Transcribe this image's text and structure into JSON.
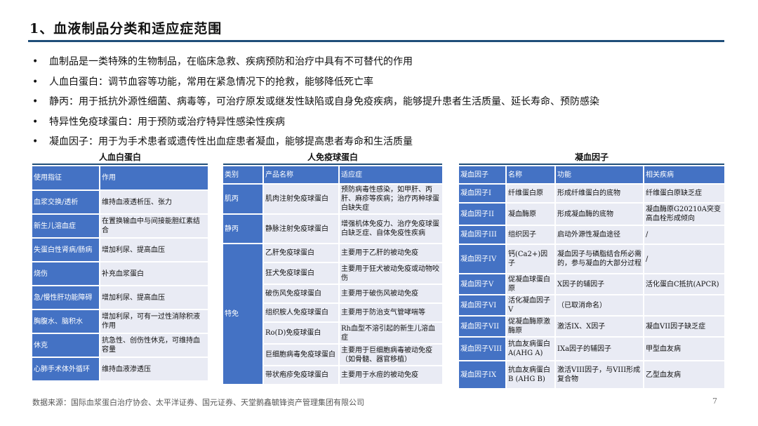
{
  "title": "1、血液制品分类和适应症范围",
  "bullets": [
    "血制品是一类特殊的生物制品，在临床急救、疾病预防和治疗中具有不可替代的作用",
    "人血白蛋白：调节血容等功能，常用在紧急情况下的抢救，能够降低死亡率",
    "静丙：用于抵抗外源性细菌、病毒等，可治疗原发或继发性缺陷或自身免疫疾病，能够提升患者生活质量、延长寿命、预防感染",
    "特异性免疫球蛋白：用于预防或治疗特异性感染性疾病",
    "凝血因子：用于为手术患者或遗传性出血症患者凝血，能够提高患者寿命和生活质量"
  ],
  "albumin": {
    "title": "人血白蛋白",
    "headers": [
      "使用指征",
      "作用"
    ],
    "rows": [
      [
        "血浆交换/透析",
        "维持血液透析压、张力"
      ],
      [
        "新生儿溶血症",
        "在置换输血中与间接能胆红素结合"
      ],
      [
        "失蛋白性肾病/肠病",
        "增加利尿、提高血压"
      ],
      [
        "烧伤",
        "补充血浆蛋白"
      ],
      [
        "急/慢性肝功能障碍",
        "增加利尿、提高血压"
      ],
      [
        "胸腹水、脑积水",
        "增加利尿，可有一过性消除积液作用"
      ],
      [
        "休克",
        "抗急性、创伤性休克，可维持血容量"
      ],
      [
        "心肺手术体外循环",
        "维持血液渗透压"
      ]
    ]
  },
  "immunoglobulin": {
    "title": "人免疫球蛋白",
    "headers": [
      "类别",
      "产品名称",
      "适应症"
    ],
    "groups": [
      {
        "category": "肌丙",
        "rows": [
          [
            "肌肉注射免疫球蛋白",
            "预防病毒性感染，如甲肝、丙肝、麻疹等疾病；治疗丙种球蛋白缺失症"
          ]
        ]
      },
      {
        "category": "静丙",
        "rows": [
          [
            "静脉注射免疫球蛋白",
            "增强机体免疫力、治疗免疫球蛋白缺乏症、自体免疫性疾病"
          ]
        ]
      },
      {
        "category": "特免",
        "rows": [
          [
            "乙肝免疫球蛋白",
            "主要用于乙肝的被动免疫"
          ],
          [
            "狂犬免疫球蛋白",
            "主要用于狂犬被动免疫或动物咬伤"
          ],
          [
            "破伤风免疫球蛋白",
            "主要用于破伤风被动免疫"
          ],
          [
            "组织胺人免疫球蛋白",
            "主要用于防治支气管哮喘等"
          ],
          [
            "Ro(D)免疫球蛋白",
            "Rh血型不溶引起的新生儿溶血症"
          ],
          [
            "巨细胞病毒免疫球蛋白",
            "主要用于巨细胞病毒被动免疫（如骨髓、器官移植）"
          ],
          [
            "带状疱疹免疫球蛋白",
            "主要用于水痘的被动免疫"
          ]
        ]
      }
    ]
  },
  "coagulation": {
    "title": "凝血因子",
    "headers": [
      "凝血因子",
      "名称",
      "功能",
      "相关疾病"
    ],
    "rows": [
      [
        "凝血因子I",
        "纤维蛋白原",
        "形成纤维蛋白的底物",
        "纤维蛋白原缺乏症"
      ],
      [
        "凝血因子II",
        "凝血酶原",
        "形成凝血酶的底物",
        "凝血酶原G20210A突变高血栓形成倾向"
      ],
      [
        "凝血因子III",
        "组织因子",
        "启动外源性凝血途径",
        "/"
      ],
      [
        "凝血因子IV",
        "钙(Ca2+)因子",
        "凝血因子与磷脂结合所必需的，参与凝血的大部分过程",
        "/"
      ],
      [
        "凝血因子V",
        "促凝血球蛋白原",
        "X因子的辅因子",
        "活化蛋白C抵抗(APCR)"
      ],
      [
        "凝血因子VI",
        "活化凝血因子V",
        "（已取消命名）",
        ""
      ],
      [
        "凝血因子VII",
        "促凝血酶原激酶原",
        "激活IX、X因子",
        "凝血VII因子缺乏症"
      ],
      [
        "凝血因子VIII",
        "抗血友病蛋白A(AHG A)",
        "IXa因子的辅因子",
        "甲型血友病"
      ],
      [
        "凝血因子IX",
        "抗血友病蛋白B (AHG B)",
        "激活VIII因子，与VIII形成复合物",
        "乙型血友病"
      ]
    ]
  },
  "footer": "数据来源：国际血浆蛋白治疗协会、太平洋证券、国元证券、天堂鹅鑫毓锋资产管理集团有限公司",
  "page_number": "7",
  "colors": {
    "header_blue": "#4472c4",
    "cell_bg": "#e9ebf4",
    "rule": "#1f4e79"
  }
}
